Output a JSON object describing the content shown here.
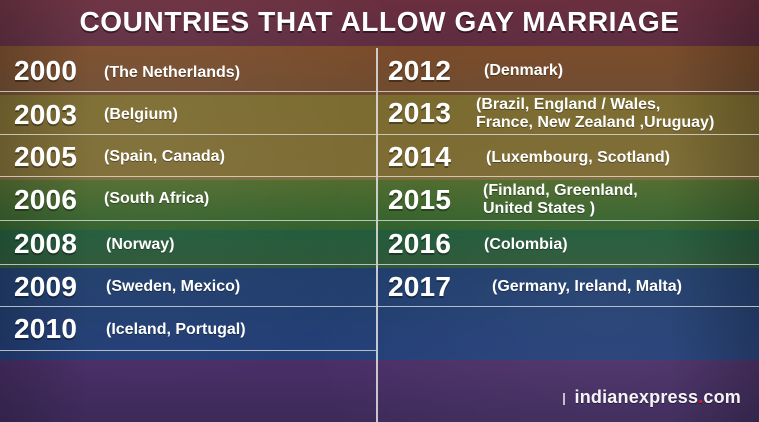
{
  "title": "COUNTRIES THAT ALLOW GAY MARRIAGE",
  "left": [
    {
      "year": "2000",
      "countries": "(The Netherlands)"
    },
    {
      "year": "2003",
      "countries": "(Belgium)"
    },
    {
      "year": "2005",
      "countries": "(Spain, Canada)"
    },
    {
      "year": "2006",
      "countries": "(South Africa)"
    },
    {
      "year": "2008",
      "countries": "(Norway)"
    },
    {
      "year": "2009",
      "countries": "(Sweden, Mexico)"
    },
    {
      "year": "2010",
      "countries": "(Iceland, Portugal)"
    }
  ],
  "right": [
    {
      "year": "2012",
      "countries": "(Denmark)"
    },
    {
      "year": "2013",
      "countries": "(Brazil, England / Wales,\nFrance,  New Zealand ,Uruguay)"
    },
    {
      "year": "2014",
      "countries": "(Luxembourg, Scotland)"
    },
    {
      "year": "2015",
      "countries": "(Finland, Greenland,\nUnited States )"
    },
    {
      "year": "2016",
      "countries": "(Colombia)"
    },
    {
      "year": "2017",
      "countries": "(Germany,  Ireland, Malta)"
    }
  ],
  "watermark": {
    "brand": "indianexpress",
    "dot": ".",
    "tld": "com"
  },
  "colors": {
    "stripe_red": "#6a2f3f",
    "stripe_orange": "#7a4b2a",
    "stripe_yellow": "#7a6a2d",
    "stripe_green": "#2f5f2b",
    "stripe_blue": "#243f78",
    "stripe_purple": "#3d2a5a",
    "watermark_red": "#e21f26"
  }
}
